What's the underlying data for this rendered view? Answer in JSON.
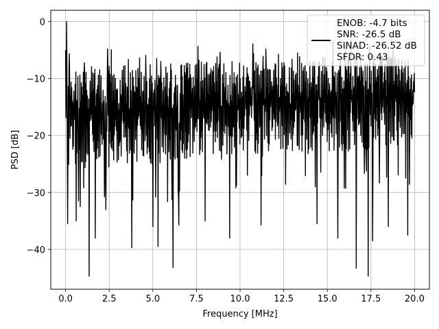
{
  "chart_data": {
    "type": "line",
    "title": "",
    "xlabel": "Frequency [MHz]",
    "ylabel": "PSD [dB]",
    "xlim": [
      -0.85,
      20.85
    ],
    "ylim": [
      -47,
      2
    ],
    "x_ticks": [
      0.0,
      2.5,
      5.0,
      7.5,
      10.0,
      12.5,
      15.0,
      17.5,
      20.0
    ],
    "x_tick_labels": [
      "0.0",
      "2.5",
      "5.0",
      "7.5",
      "10.0",
      "12.5",
      "15.0",
      "17.5",
      "20.0"
    ],
    "y_ticks": [
      0,
      -10,
      -20,
      -30,
      -40
    ],
    "y_tick_labels": [
      "0",
      "−10",
      "−20",
      "−30",
      "−40"
    ],
    "grid": true,
    "legend_position": "top-right",
    "series": [
      {
        "name": "",
        "color": "#000000",
        "x_range": [
          0.0,
          20.0
        ],
        "points": 1024,
        "typical_upper_db": [
          -8,
          -4
        ],
        "typical_lower_db": [
          -26,
          -22
        ],
        "peak": {
          "x": 0.05,
          "y": 0.0
        },
        "notches": [
          {
            "x": 0.12,
            "y": -35.5
          },
          {
            "x": 0.6,
            "y": -35
          },
          {
            "x": 0.85,
            "y": -32.5
          },
          {
            "x": 1.35,
            "y": -44.7
          },
          {
            "x": 1.7,
            "y": -38
          },
          {
            "x": 2.3,
            "y": -33
          },
          {
            "x": 3.8,
            "y": -39.7
          },
          {
            "x": 5.0,
            "y": -36
          },
          {
            "x": 5.3,
            "y": -39.5
          },
          {
            "x": 6.15,
            "y": -43.2
          },
          {
            "x": 6.5,
            "y": -35.7
          },
          {
            "x": 8.0,
            "y": -35
          },
          {
            "x": 9.4,
            "y": -38
          },
          {
            "x": 11.2,
            "y": -35.7
          },
          {
            "x": 14.4,
            "y": -35.5
          },
          {
            "x": 15.6,
            "y": -38
          },
          {
            "x": 16.65,
            "y": -43.3
          },
          {
            "x": 17.35,
            "y": -44.7
          },
          {
            "x": 17.6,
            "y": -38.5
          },
          {
            "x": 18.5,
            "y": -36
          },
          {
            "x": 19.6,
            "y": -37.5
          }
        ]
      }
    ],
    "legend_entries": [
      "ENOB: -4.7 bits",
      "SNR: -26.5 dB",
      "SINAD: -26.52 dB",
      "SFDR: 0.43"
    ]
  }
}
